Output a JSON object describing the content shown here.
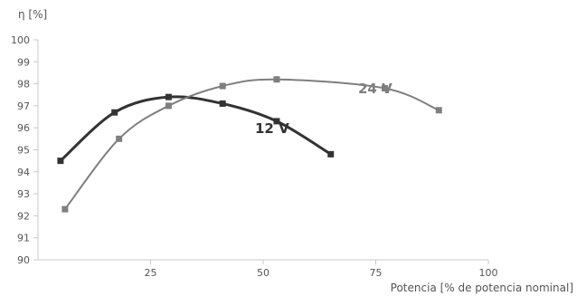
{
  "chart_data": {
    "type": "line",
    "xlabel": "Potencia [% de potencia nominal]",
    "ylabel": "η [%]",
    "xlim": [
      0,
      100
    ],
    "ylim": [
      90,
      100
    ],
    "x_ticks": [
      "25",
      "50",
      "75",
      "100"
    ],
    "y_ticks": [
      "90",
      "91",
      "92",
      "93",
      "94",
      "95",
      "96",
      "97",
      "98",
      "99",
      "100"
    ],
    "grid": false,
    "series": [
      {
        "name": "12 V",
        "color": "#333333",
        "x": [
          5,
          17,
          29,
          41,
          53,
          65
        ],
        "y": [
          94.5,
          96.7,
          97.4,
          97.1,
          96.3,
          94.8
        ]
      },
      {
        "name": "24 V",
        "color": "#7f7f7f",
        "x": [
          6,
          18,
          29,
          41,
          53,
          77,
          89
        ],
        "y": [
          92.3,
          95.5,
          97.0,
          97.9,
          98.2,
          97.8,
          96.8
        ]
      }
    ]
  }
}
